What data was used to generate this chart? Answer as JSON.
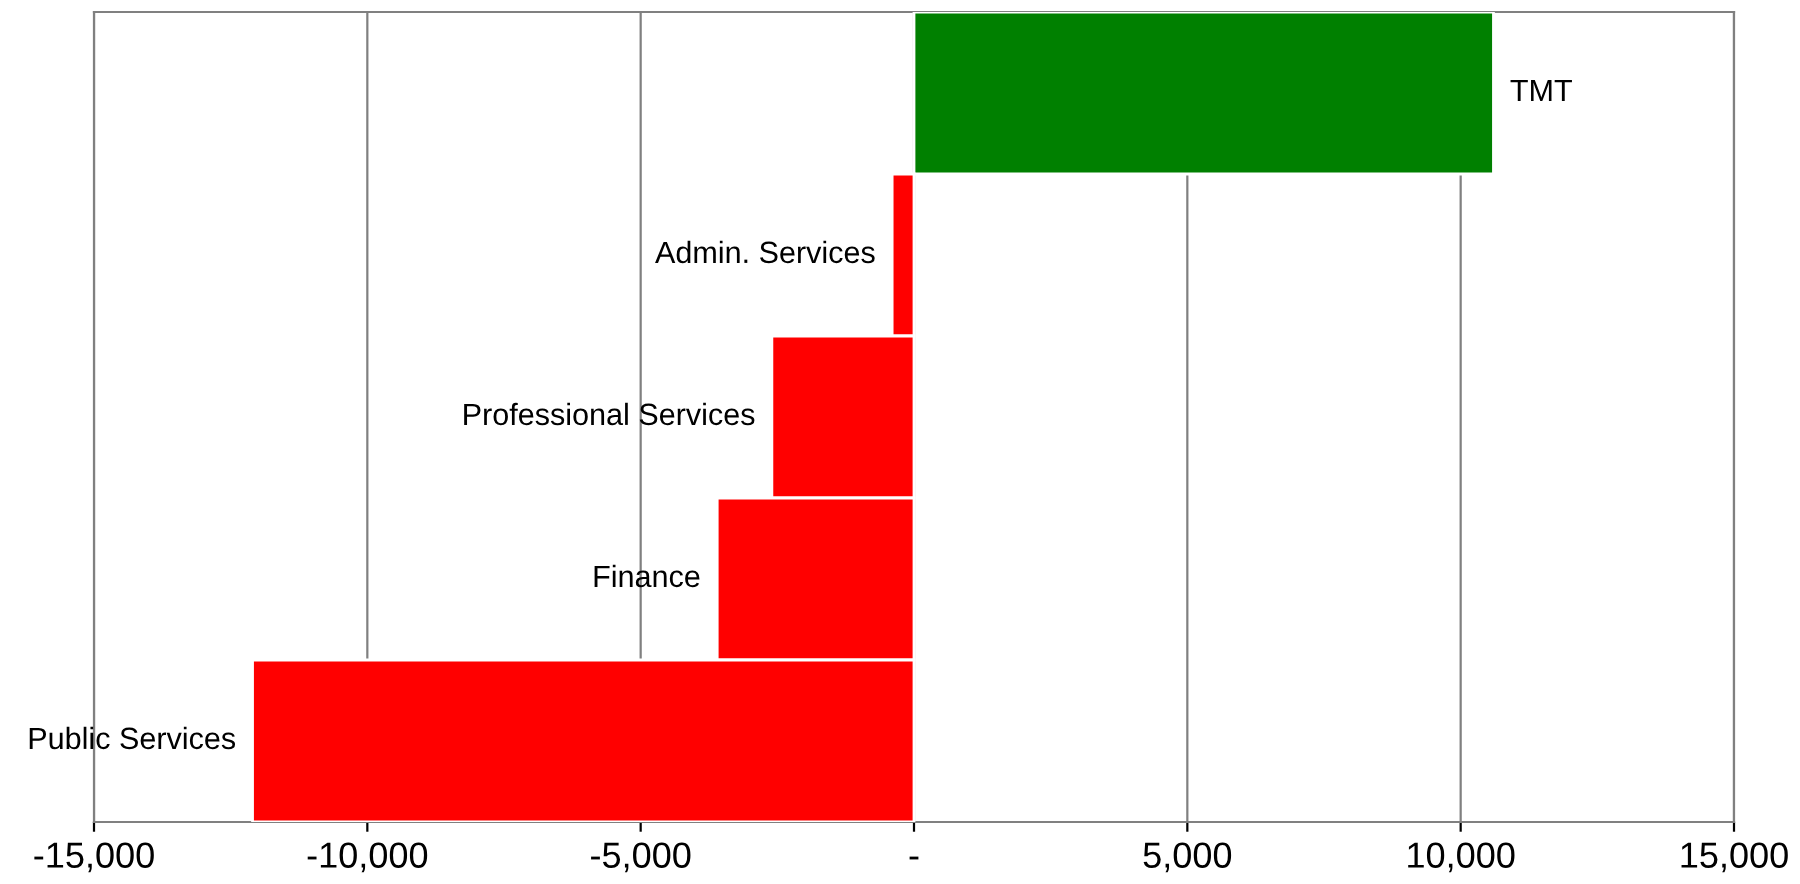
{
  "chart_data": {
    "type": "bar",
    "orientation": "horizontal",
    "categories": [
      "TMT",
      "Admin. Services",
      "Professional Services",
      "Finance",
      "Public Services"
    ],
    "values": [
      10600,
      -400,
      -2600,
      -3600,
      -12100
    ],
    "colors": [
      "#008000",
      "#ff0000",
      "#ff0000",
      "#ff0000",
      "#ff0000"
    ],
    "xlim": [
      -15000,
      15000
    ],
    "xticks": [
      {
        "value": -15000,
        "label": "-15,000"
      },
      {
        "value": -10000,
        "label": "-10,000"
      },
      {
        "value": -5000,
        "label": "-5,000"
      },
      {
        "value": 0,
        "label": "-"
      },
      {
        "value": 5000,
        "label": "5,000"
      },
      {
        "value": 10000,
        "label": "10,000"
      },
      {
        "value": 15000,
        "label": "15,000"
      }
    ],
    "grid": "x",
    "tick_labels": "x"
  }
}
